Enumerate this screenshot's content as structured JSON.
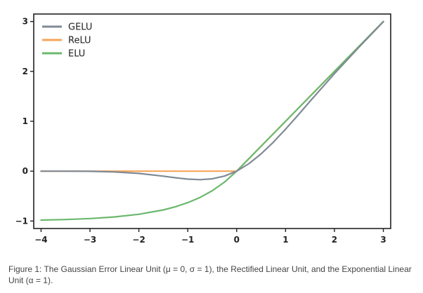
{
  "chart_data": {
    "type": "line",
    "title": "",
    "xlabel": "",
    "ylabel": "",
    "xlim": [
      -4.15,
      3.15
    ],
    "ylim": [
      -1.15,
      3.15
    ],
    "x_ticks": [
      -4,
      -3,
      -2,
      -1,
      0,
      1,
      2,
      3
    ],
    "y_ticks": [
      -1,
      0,
      1,
      2,
      3
    ],
    "x_tick_labels": [
      "−4",
      "−3",
      "−2",
      "−1",
      "0",
      "1",
      "2",
      "3"
    ],
    "y_tick_labels": [
      "−1",
      "0",
      "1",
      "2",
      "3"
    ],
    "grid": false,
    "legend_position": "top-left",
    "series": [
      {
        "name": "GELU",
        "color": "#7f8a95",
        "x": [
          -4.0,
          -3.5,
          -3.0,
          -2.5,
          -2.0,
          -1.5,
          -1.25,
          -1.0,
          -0.75,
          -0.5,
          -0.25,
          0.0,
          0.25,
          0.5,
          0.75,
          1.0,
          1.25,
          1.5,
          2.0,
          2.5,
          3.0
        ],
        "y": [
          0.0,
          -0.001,
          -0.004,
          -0.016,
          -0.045,
          -0.1,
          -0.132,
          -0.159,
          -0.17,
          -0.154,
          -0.099,
          0.0,
          0.15,
          0.346,
          0.58,
          0.841,
          1.118,
          1.4,
          1.955,
          2.484,
          2.996
        ]
      },
      {
        "name": "ReLU",
        "color": "#f5a55a",
        "x": [
          -4.0,
          -3.0,
          -2.0,
          -1.0,
          0.0,
          1.0,
          2.0,
          3.0
        ],
        "y": [
          0,
          0,
          0,
          0,
          0,
          1,
          2,
          3
        ]
      },
      {
        "name": "ELU",
        "color": "#6bb86e",
        "x": [
          -4.0,
          -3.5,
          -3.0,
          -2.5,
          -2.0,
          -1.5,
          -1.25,
          -1.0,
          -0.75,
          -0.5,
          -0.25,
          0.0,
          1.0,
          2.0,
          3.0
        ],
        "y": [
          -0.982,
          -0.97,
          -0.95,
          -0.918,
          -0.865,
          -0.777,
          -0.713,
          -0.632,
          -0.528,
          -0.393,
          -0.221,
          0.0,
          1.0,
          2.0,
          3.0
        ]
      }
    ]
  },
  "caption": "Figure 1: The Gaussian Error Linear Unit (μ = 0, σ = 1), the Rectified Linear Unit, and the Exponential Linear Unit (α = 1)."
}
